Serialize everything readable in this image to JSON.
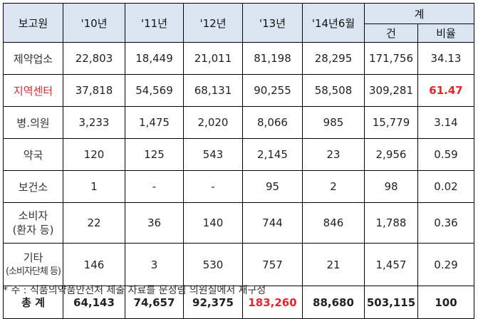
{
  "header": {
    "reporter": "보고원",
    "years": [
      "'10년",
      "'11년",
      "'12년",
      "'13년",
      "'14년6월"
    ],
    "total_group": "계",
    "count": "건",
    "ratio": "비율"
  },
  "rows": [
    {
      "label": "제약업소",
      "values": [
        "22,803",
        "18,449",
        "21,011",
        "81,198",
        "28,295"
      ],
      "count": "171,756",
      "ratio": "34.13"
    },
    {
      "label": "지역센터",
      "values": [
        "37,818",
        "54,569",
        "68,131",
        "90,255",
        "58,508"
      ],
      "count": "309,281",
      "ratio": "61.47"
    },
    {
      "label": "병.의원",
      "values": [
        "3,233",
        "1,475",
        "2,020",
        "8,066",
        "985"
      ],
      "count": "15,779",
      "ratio": "3.14"
    },
    {
      "label": "약국",
      "values": [
        "120",
        "125",
        "543",
        "2,145",
        "23"
      ],
      "count": "2,956",
      "ratio": "0.59"
    },
    {
      "label": "보건소",
      "values": [
        "1",
        "-",
        "-",
        "95",
        "2"
      ],
      "count": "98",
      "ratio": "0.02"
    },
    {
      "label_line1": "소비자",
      "label_line2": "(환자 등)",
      "values": [
        "22",
        "36",
        "140",
        "744",
        "846"
      ],
      "count": "1,788",
      "ratio": "0.36"
    },
    {
      "label_line1": "기타",
      "label_line2": "(소비자단체 등)",
      "values": [
        "146",
        "3",
        "530",
        "757",
        "21"
      ],
      "count": "1,457",
      "ratio": "0.29"
    }
  ],
  "total": {
    "label": "총 계",
    "values": [
      "64,143",
      "74,657",
      "92,375",
      "183,260",
      "88,680"
    ],
    "count": "503,115",
    "ratio": "100"
  },
  "footnote": "* 주 : 식품의약품안전처 제출 자료를 문정림 의원실에서 재구성",
  "colors": {
    "header_bg": "#dbe5f1",
    "highlight": "#e8242a"
  }
}
